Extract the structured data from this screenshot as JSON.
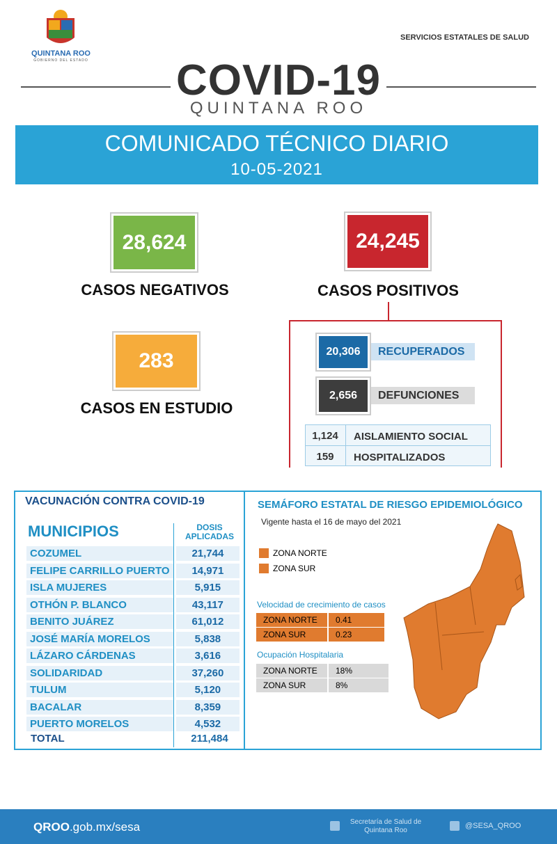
{
  "header": {
    "logo_text": "QUINTANA ROO",
    "logo_subtext": "GOBIERNO DEL ESTADO",
    "agency": "SERVICIOS ESTATALES DE SALUD",
    "title": "COVID-19",
    "subtitle": "QUINTANA ROO"
  },
  "banner": {
    "title": "COMUNICADO TÉCNICO DIARIO",
    "date": "10-05-2021"
  },
  "cases": {
    "negative": {
      "value": "28,624",
      "label": "CASOS NEGATIVOS"
    },
    "positive": {
      "value": "24,245",
      "label": "CASOS POSITIVOS"
    },
    "study": {
      "value": "283",
      "label": "CASOS EN ESTUDIO"
    }
  },
  "positive_breakdown": [
    {
      "value": "20,306",
      "label": "RECUPERADOS"
    },
    {
      "value": "2,656",
      "label": "DEFUNCIONES"
    }
  ],
  "active": [
    {
      "value": "1,124",
      "label": "AISLAMIENTO SOCIAL"
    },
    {
      "value": "159",
      "label": "HOSPITALIZADOS"
    }
  ],
  "vaccination": {
    "title": "VACUNACIÓN CONTRA COVID-19",
    "columns": [
      "MUNICIPIOS",
      "DOSIS APLICADAS"
    ],
    "rows": [
      [
        "COZUMEL",
        "21,744"
      ],
      [
        "FELIPE CARRILLO PUERTO",
        "14,971"
      ],
      [
        "ISLA MUJERES",
        "5,915"
      ],
      [
        "OTHÓN P. BLANCO",
        "43,117"
      ],
      [
        "BENITO JUÁREZ",
        "61,012"
      ],
      [
        "JOSÉ MARÍA MORELOS",
        "5,838"
      ],
      [
        "LÁZARO CÁRDENAS",
        "3,616"
      ],
      [
        "SOLIDARIDAD",
        "37,260"
      ],
      [
        "TULUM",
        "5,120"
      ],
      [
        "BACALAR",
        "8,359"
      ],
      [
        "PUERTO MORELOS",
        "4,532"
      ]
    ],
    "total": [
      "TOTAL",
      "211,484"
    ]
  },
  "semaforo": {
    "title": "SEMÁFORO ESTATAL DE RIESGO EPIDEMIOLÓGICO",
    "validity": "Vigente hasta el 16 de mayo del 2021",
    "legend": [
      "ZONA NORTE",
      "ZONA SUR"
    ],
    "growth": {
      "title": "Velocidad de crecimiento de casos",
      "rows": [
        [
          "ZONA NORTE",
          "0.41"
        ],
        [
          "ZONA SUR",
          "0.23"
        ]
      ]
    },
    "hospital": {
      "title": "Ocupación Hospitalaria",
      "rows": [
        [
          "ZONA NORTE",
          "18%"
        ],
        [
          "ZONA SUR",
          "8%"
        ]
      ]
    }
  },
  "footer": {
    "site_bold": "QROO",
    "site_rest": ".gob.mx/sesa",
    "facebook": "Secretaría de Salud de Quintana Roo",
    "twitter": "@SESA_QROO"
  }
}
